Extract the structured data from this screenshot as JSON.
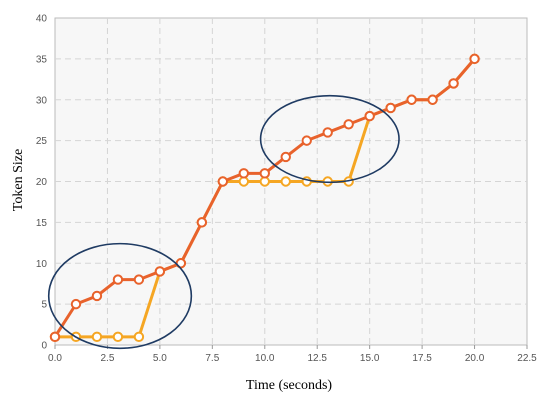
{
  "chart_data": {
    "type": "line",
    "xlabel": "Time (seconds)",
    "ylabel": "Token Size",
    "xlim": [
      0,
      22.5
    ],
    "ylim": [
      0,
      40
    ],
    "xticks": [
      "0.0",
      "2.5",
      "5.0",
      "7.5",
      "10.0",
      "12.5",
      "15.0",
      "17.5",
      "20.0",
      "22.5"
    ],
    "yticks": [
      "0",
      "5",
      "10",
      "15",
      "20",
      "25",
      "30",
      "35",
      "40"
    ],
    "grid": true,
    "series": [
      {
        "color": "#e8622c",
        "points": [
          [
            0,
            1
          ],
          [
            1,
            5
          ],
          [
            2,
            6
          ],
          [
            3,
            8
          ],
          [
            4,
            8
          ],
          [
            5,
            9
          ],
          [
            6,
            10
          ],
          [
            7,
            15
          ],
          [
            8,
            20
          ],
          [
            9,
            21
          ],
          [
            10,
            21
          ],
          [
            11,
            23
          ],
          [
            12,
            25
          ],
          [
            13,
            26
          ],
          [
            14,
            27
          ],
          [
            15,
            28
          ],
          [
            16,
            29
          ],
          [
            17,
            30
          ],
          [
            18,
            30
          ],
          [
            19,
            32
          ],
          [
            20,
            35
          ]
        ]
      },
      {
        "color": "#f5a623",
        "points": [
          [
            0,
            1
          ],
          [
            1,
            1
          ],
          [
            2,
            1
          ],
          [
            3,
            1
          ],
          [
            4,
            1
          ],
          [
            5,
            9
          ],
          [
            6,
            10
          ],
          [
            7,
            15
          ],
          [
            8,
            20
          ],
          [
            9,
            20
          ],
          [
            10,
            20
          ],
          [
            11,
            20
          ],
          [
            12,
            20
          ],
          [
            13,
            20
          ],
          [
            14,
            20
          ],
          [
            15,
            28
          ],
          [
            16,
            29
          ],
          [
            17,
            30
          ],
          [
            18,
            30
          ],
          [
            19,
            32
          ],
          [
            20,
            35
          ]
        ]
      }
    ],
    "annotations": [
      {
        "shape": "ellipse",
        "x_center": 3.1,
        "y_center": 6,
        "x_radius": 3.4,
        "y_radius": 6.4,
        "color": "#1f3b63"
      },
      {
        "shape": "ellipse",
        "x_center": 13.1,
        "y_center": 25.2,
        "x_radius": 3.3,
        "y_radius": 5.3,
        "color": "#1f3b63"
      }
    ]
  }
}
